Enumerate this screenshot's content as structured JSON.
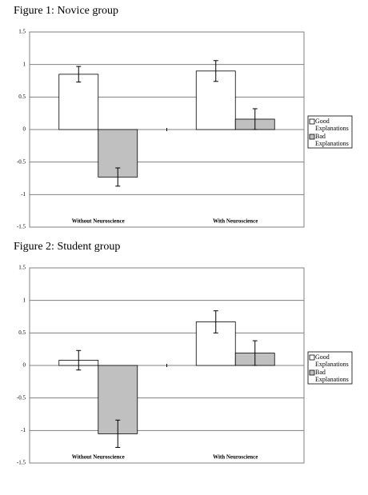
{
  "chart_data": [
    {
      "type": "bar",
      "title": "Figure 1: Novice group",
      "categories": [
        "Without Neuroscience",
        "With Neuroscience"
      ],
      "series": [
        {
          "name": "Good Explanations",
          "color": "#ffffff",
          "values": [
            0.85,
            0.9
          ],
          "errors": [
            0.12,
            0.16
          ]
        },
        {
          "name": "Bad Explanations",
          "color": "#c0c0c0",
          "values": [
            -0.73,
            0.16
          ],
          "errors": [
            0.14,
            0.16
          ]
        }
      ],
      "ylim": [
        -1.5,
        1.5
      ],
      "yticks": [
        -1.5,
        -1,
        -0.5,
        0,
        0.5,
        1,
        1.5
      ],
      "grid": true,
      "legend": "right"
    },
    {
      "type": "bar",
      "title": "Figure 2: Student group",
      "categories": [
        "Without Neuroscience",
        "With Neuroscience"
      ],
      "series": [
        {
          "name": "Good Explanations",
          "color": "#ffffff",
          "values": [
            0.08,
            0.67
          ],
          "errors": [
            0.15,
            0.17
          ]
        },
        {
          "name": "Bad Explanations",
          "color": "#c0c0c0",
          "values": [
            -1.05,
            0.19
          ],
          "errors": [
            0.21,
            0.19
          ]
        }
      ],
      "ylim": [
        -1.5,
        1.5
      ],
      "yticks": [
        -1.5,
        -1,
        -0.5,
        0,
        0.5,
        1,
        1.5
      ],
      "grid": true,
      "legend": "right"
    }
  ]
}
